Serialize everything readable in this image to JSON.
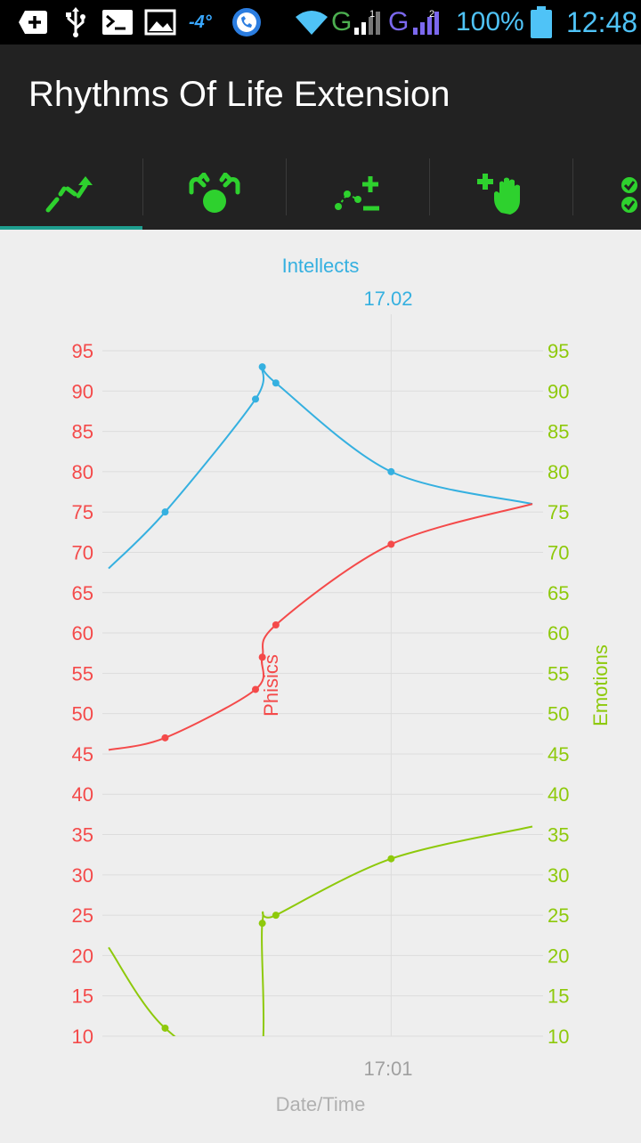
{
  "status_bar": {
    "icons": [
      "add-notification-icon",
      "usb-icon",
      "terminal-icon",
      "gallery-icon",
      "temperature-icon",
      "voip-icon",
      "wifi-icon",
      "signal-g-icon",
      "signal-g2-icon",
      "battery-icon"
    ],
    "temperature": "-4°",
    "network1": "G",
    "network2": "G",
    "sim1": "1",
    "sim2": "2",
    "battery_pct": "100%",
    "time": "12:48"
  },
  "app": {
    "title": "Rhythms Of Life Extension"
  },
  "tabs": [
    {
      "icon": "trend-chart-icon",
      "active": true
    },
    {
      "icon": "hands-circle-icon",
      "active": false
    },
    {
      "icon": "points-plus-minus-icon",
      "active": false
    },
    {
      "icon": "add-hand-icon",
      "active": false
    },
    {
      "icon": "checklist-icon",
      "active": false
    }
  ],
  "colors": {
    "physics": "#f44a4a",
    "intellect": "#35b0e0",
    "emotions": "#8ec90b",
    "accent": "#1e9e8f",
    "tab_icon": "#2ed12e"
  },
  "chart_data": {
    "type": "line",
    "title": "Intellects",
    "marker_label": "17.02",
    "xlabel": "Date/Time",
    "x_tick_label": "17:01",
    "left_axis_label": "Phisics",
    "right_axis_label": "Emotions",
    "ylim": [
      10,
      95
    ],
    "ytick_step": 5,
    "y_ticks": [
      "95",
      "90",
      "85",
      "80",
      "75",
      "70",
      "65",
      "60",
      "55",
      "50",
      "45",
      "40",
      "35",
      "30",
      "25",
      "20",
      "15",
      "10"
    ],
    "grid": true,
    "x_points": [
      0,
      1,
      2.6,
      2.72,
      2.96,
      5,
      7.5
    ],
    "series": [
      {
        "name": "Intellects",
        "color": "#35b0e0",
        "values": [
          68,
          75,
          89,
          93,
          91,
          80,
          76
        ]
      },
      {
        "name": "Phisics",
        "color": "#f44a4a",
        "values": [
          45.5,
          47,
          53,
          57,
          61,
          71,
          76
        ]
      },
      {
        "name": "Emotions",
        "color": "#8ec90b",
        "values": [
          21,
          11,
          5,
          24,
          25,
          32,
          36
        ]
      }
    ]
  }
}
